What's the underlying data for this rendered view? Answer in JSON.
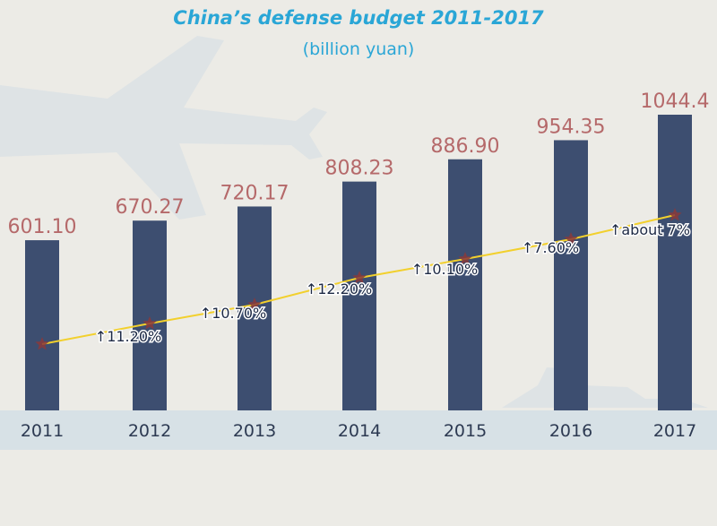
{
  "chart_data": {
    "type": "bar",
    "title": "China’s defense budget 2011-2017",
    "subtitle": "(billion yuan)",
    "categories": [
      "2011",
      "2012",
      "2013",
      "2014",
      "2015",
      "2016",
      "2017"
    ],
    "series": [
      {
        "values": [
          601.1,
          670.27,
          720.17,
          808.23,
          886.9,
          954.35,
          1044.4
        ]
      }
    ],
    "value_labels": [
      "601.10",
      "670.27",
      "720.17",
      "808.23",
      "886.90",
      "954.35",
      "1044.4"
    ],
    "growth_line": {
      "values": [
        null,
        11.2,
        10.7,
        12.2,
        10.1,
        7.6,
        7
      ],
      "labels": [
        "",
        "↑11.20%",
        "↑10.70%",
        "↑12.20%",
        "↑10.10%",
        "↑7.60%",
        "↑about 7%"
      ]
    },
    "ylim": [
      0,
      1100
    ],
    "grid": false,
    "legend": "none"
  },
  "colors": {
    "background": "#ecebe6",
    "bar": "#3d4e70",
    "value_label": "#b5696a",
    "title": "#2aa6d6",
    "axis_band": "#d7e1e6",
    "year_label": "#2d3a52",
    "growth_line": "#f2d02d",
    "growth_marker": "#8a3a3a",
    "growth_label": "#1e2a45",
    "watermark": "#d8dde0"
  },
  "icons": {
    "background": [
      "airplane-silhouette-icon",
      "warship-silhouette-icon"
    ],
    "growth_marker": "star-icon"
  }
}
